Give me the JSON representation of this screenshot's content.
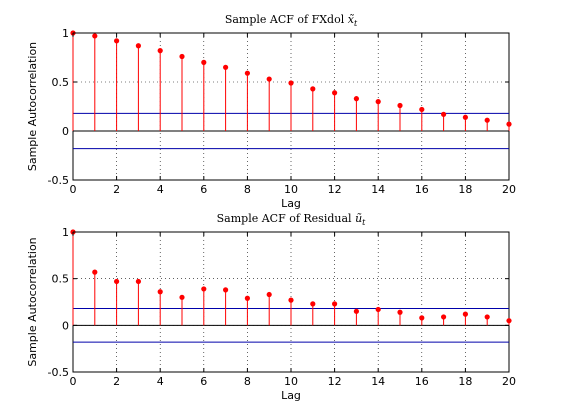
{
  "chart_data": [
    {
      "type": "stem",
      "title": "Sample ACF of FXdol",
      "title_symbol": "x̃",
      "title_subscript": "t",
      "xlabel": "Lag",
      "ylabel": "Sample Autocorrelation",
      "xlim": [
        0,
        20
      ],
      "ylim": [
        -0.5,
        1
      ],
      "xticks": [
        "0",
        "2",
        "4",
        "6",
        "8",
        "10",
        "12",
        "14",
        "16",
        "18",
        "20"
      ],
      "yticks": [
        "-0.5",
        "0",
        "0.5",
        "1"
      ],
      "grid": "dotted",
      "lags": [
        0,
        1,
        2,
        3,
        4,
        5,
        6,
        7,
        8,
        9,
        10,
        11,
        12,
        13,
        14,
        15,
        16,
        17,
        18,
        19,
        20
      ],
      "values": [
        1.0,
        0.97,
        0.92,
        0.87,
        0.82,
        0.76,
        0.7,
        0.65,
        0.59,
        0.53,
        0.49,
        0.43,
        0.39,
        0.33,
        0.3,
        0.26,
        0.22,
        0.17,
        0.14,
        0.11,
        0.07
      ],
      "confidence_bounds": [
        0.18,
        -0.18
      ],
      "colors": {
        "stem": "#ff0000",
        "bounds": "#0000aa",
        "zero_line": "#000000"
      }
    },
    {
      "type": "stem",
      "title": "Sample ACF of Residual",
      "title_symbol": "ũ",
      "title_subscript": "t",
      "xlabel": "Lag",
      "ylabel": "Sample Autocorrelation",
      "xlim": [
        0,
        20
      ],
      "ylim": [
        -0.5,
        1
      ],
      "xticks": [
        "0",
        "2",
        "4",
        "6",
        "8",
        "10",
        "12",
        "14",
        "16",
        "18",
        "20"
      ],
      "yticks": [
        "-0.5",
        "0",
        "0.5",
        "1"
      ],
      "grid": "dotted",
      "lags": [
        0,
        1,
        2,
        3,
        4,
        5,
        6,
        7,
        8,
        9,
        10,
        11,
        12,
        13,
        14,
        15,
        16,
        17,
        18,
        19,
        20
      ],
      "values": [
        1.0,
        0.57,
        0.47,
        0.47,
        0.36,
        0.3,
        0.39,
        0.38,
        0.29,
        0.33,
        0.27,
        0.23,
        0.23,
        0.15,
        0.17,
        0.14,
        0.08,
        0.09,
        0.12,
        0.09,
        0.05
      ],
      "confidence_bounds": [
        0.18,
        -0.18
      ],
      "colors": {
        "stem": "#ff0000",
        "bounds": "#0000aa",
        "zero_line": "#000000"
      }
    }
  ]
}
